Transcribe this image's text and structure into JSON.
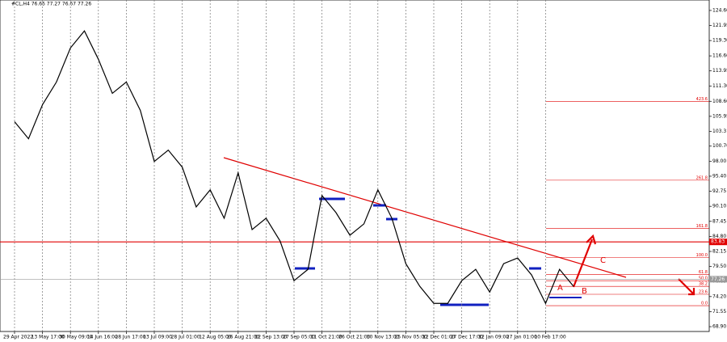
{
  "chart_data": {
    "type": "line",
    "title": "#CL,H4  76.65 77.27 76.67 77.26",
    "categories": [
      "29 Apr 2022",
      null,
      "13 May 17:00",
      null,
      "30 May 09:00",
      null,
      "14 Jun 16:00",
      null,
      "28 Jun 17:00",
      null,
      "13 Jul 09:00",
      null,
      "28 Jul 01:00",
      null,
      "12 Aug 05:00",
      null,
      "26 Aug 21:00",
      null,
      "12 Sep 13:00",
      null,
      "27 Sep 05:00",
      null,
      "11 Oct 21:00",
      null,
      "26 Oct 21:00",
      null,
      "10 Nov 13:00",
      null,
      "25 Nov 05:00",
      null,
      "12 Dec 01:00",
      null,
      "27 Dec 17:00",
      null,
      "12 Jan 09:00",
      null,
      "27 Jan 01:00",
      null,
      "10 Feb 17:00",
      null,
      null
    ],
    "values": [
      105,
      102,
      108,
      112,
      118,
      121,
      116,
      110,
      112,
      107,
      98,
      100,
      97,
      90,
      93,
      88,
      96,
      86,
      88,
      84,
      77,
      79,
      92,
      89,
      85,
      87,
      93,
      88,
      80,
      76,
      73,
      73,
      77,
      79,
      75,
      80,
      81,
      78,
      73,
      79,
      76
    ],
    "color": "#000000",
    "ylim": [
      68.05,
      126.44
    ],
    "yticks": [
      {
        "value": 124.6,
        "label": "124.60"
      },
      {
        "value": 121.95,
        "label": "121.95"
      },
      {
        "value": 119.3,
        "label": "119.30"
      },
      {
        "value": 116.6,
        "label": "116.60"
      },
      {
        "value": 113.95,
        "label": "113.95"
      },
      {
        "value": 111.3,
        "label": "111.30"
      },
      {
        "value": 108.6,
        "label": "108.60"
      },
      105.95,
      103.3,
      {
        "value": 100.7,
        "label": "100.70"
      },
      {
        "value": 98,
        "label": "98.00"
      },
      {
        "value": 95.4,
        "label": "95.40"
      },
      92.75,
      {
        "value": 90.1,
        "label": "90.10"
      },
      87.45,
      {
        "value": 84.8,
        "label": "84.80"
      },
      82.15,
      {
        "value": 79.5,
        "label": "79.50"
      },
      76.85,
      {
        "value": 74.2,
        "label": "74.20"
      },
      71.55,
      {
        "value": 68.9,
        "label": "68.90"
      }
    ],
    "grid": true,
    "price_lines": [
      {
        "value": 83.83,
        "color": "#e00000"
      },
      {
        "value": 77.26,
        "color": "#9a9a9a"
      }
    ],
    "fib_levels": [
      {
        "label": "423.6",
        "value": 108.6
      },
      {
        "label": "261.8",
        "value": 94.7
      },
      {
        "label": "161.8",
        "value": 86.2
      },
      {
        "label": "100.0",
        "value": 81.1
      },
      {
        "label": "61.8",
        "value": 78.1
      },
      {
        "label": "50.0",
        "value": 77.0
      },
      {
        "label": "38.2",
        "value": 76.0
      },
      {
        "label": "23.6",
        "value": 74.6
      },
      {
        "label": "0.0",
        "value": 72.6
      }
    ],
    "annotations": [
      "A",
      "B",
      "C"
    ]
  }
}
